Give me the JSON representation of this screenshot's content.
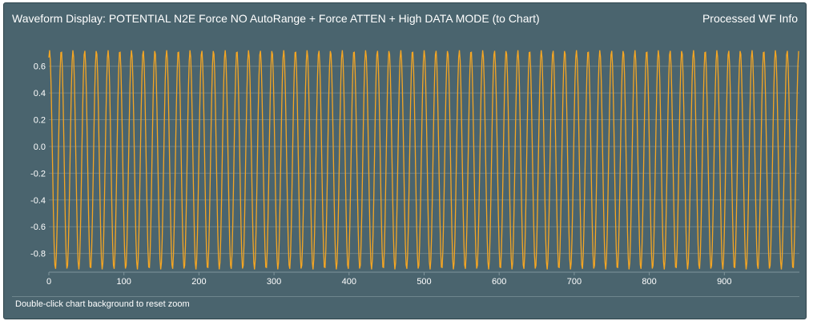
{
  "panel": {
    "title": "Waveform Display: POTENTIAL N2E Force NO AutoRange + Force ATTEN + High DATA MODE (to Chart)",
    "info_link": "Processed WF Info",
    "footer_hint": "Double-click chart background to reset zoom"
  },
  "colors": {
    "panel_bg": "#4a646e",
    "series": "#f5a623",
    "grid": "#6b8189",
    "text": "#ffffff"
  },
  "chart_data": {
    "type": "line",
    "series": [
      {
        "waveform": "sine",
        "amplitude": 0.82,
        "offset": -0.1,
        "period": 15.6,
        "phase": 1.2,
        "num_points": 1000
      }
    ],
    "xlim": [
      0,
      1000
    ],
    "ylim": [
      -0.94,
      0.76
    ],
    "xticks": [
      0,
      100,
      200,
      300,
      400,
      500,
      600,
      700,
      800,
      900
    ],
    "yticks": [
      0.6,
      0.4,
      0.2,
      0.0,
      -0.2,
      -0.4,
      -0.6,
      -0.8
    ],
    "grid": true,
    "legend": "none"
  }
}
